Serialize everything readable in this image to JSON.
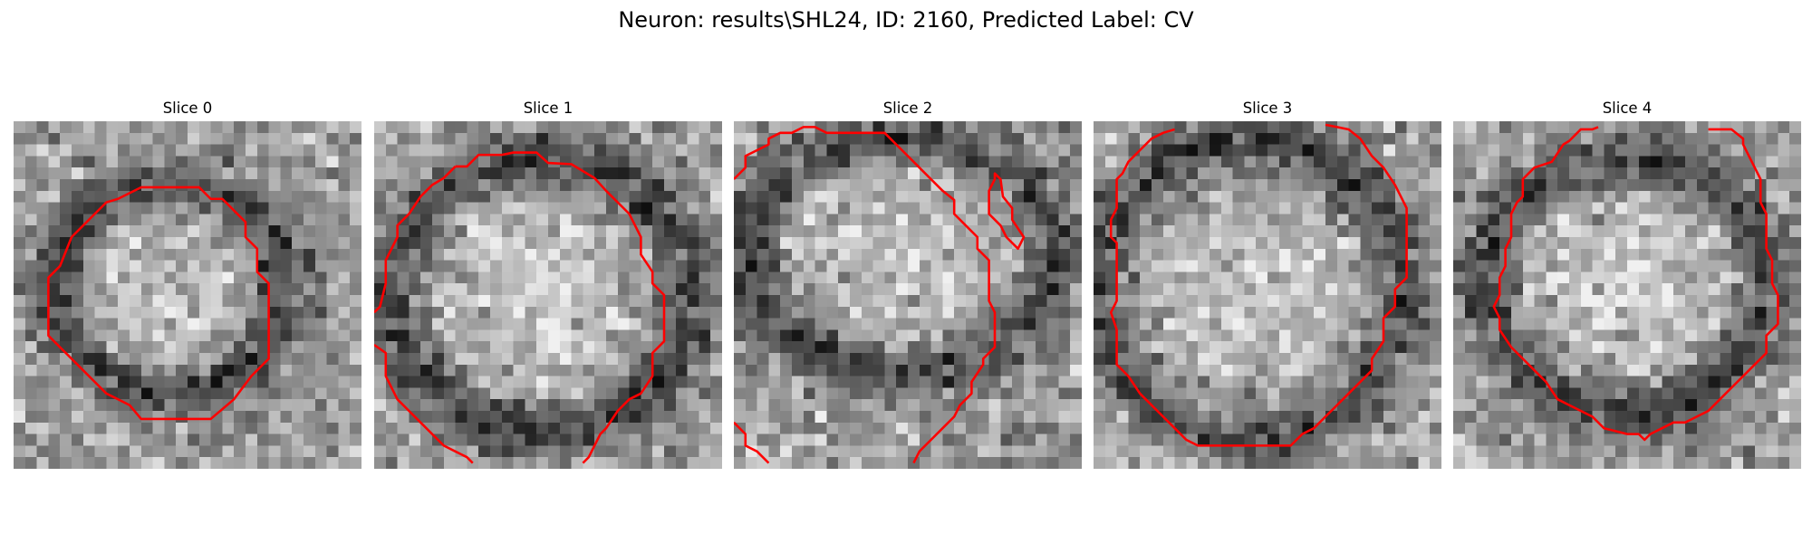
{
  "figure": {
    "title": "Neuron: results\\SHL24, ID: 2160, Predicted Label: CV"
  },
  "slices": [
    {
      "title": "Slice 0"
    },
    {
      "title": "Slice 1"
    },
    {
      "title": "Slice 2"
    },
    {
      "title": "Slice 3"
    },
    {
      "title": "Slice 4"
    }
  ],
  "colors": {
    "contour": "#ff0000",
    "image_colormap": "grayscale"
  }
}
